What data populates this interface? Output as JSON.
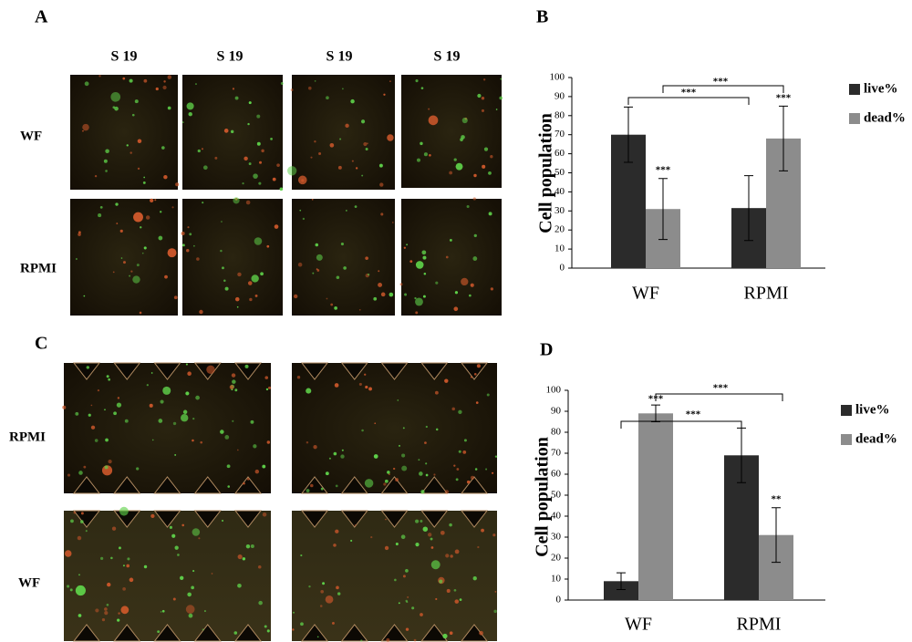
{
  "panel_labels": [
    "A",
    "B",
    "C",
    "D"
  ],
  "panel_a": {
    "column_labels": [
      "S 19",
      "S 19",
      "S 19",
      "S 19"
    ],
    "row_labels": [
      "WF",
      "RPMI"
    ]
  },
  "panel_c": {
    "row_labels": [
      "RPMI",
      "WF"
    ]
  },
  "chart_data": [
    {
      "type": "bar",
      "y_label": "Cell population",
      "categories": [
        "WF",
        "RPMI"
      ],
      "series": [
        {
          "name": "live%",
          "color": "#2b2b2b",
          "values": [
            70,
            31.5
          ],
          "errors": [
            14.5,
            17
          ]
        },
        {
          "name": "dead%",
          "color": "#8c8c8c",
          "values": [
            31,
            68
          ],
          "errors": [
            16,
            17
          ]
        }
      ],
      "ylim": [
        0,
        100
      ],
      "yticks": [
        0,
        10,
        20,
        30,
        40,
        50,
        60,
        70,
        80,
        90,
        100
      ],
      "annotations": [
        "***",
        "***",
        "***",
        "***"
      ]
    },
    {
      "type": "bar",
      "y_label": "Cell population",
      "categories": [
        "WF",
        "RPMI"
      ],
      "series": [
        {
          "name": "live%",
          "color": "#2b2b2b",
          "values": [
            9,
            69
          ],
          "errors": [
            4,
            13
          ]
        },
        {
          "name": "dead%",
          "color": "#8c8c8c",
          "values": [
            89,
            31
          ],
          "errors": [
            4,
            13
          ]
        }
      ],
      "ylim": [
        0,
        100
      ],
      "yticks": [
        0,
        10,
        20,
        30,
        40,
        50,
        60,
        70,
        80,
        90,
        100
      ],
      "annotations": [
        "***",
        "**",
        "***",
        "***"
      ]
    }
  ]
}
